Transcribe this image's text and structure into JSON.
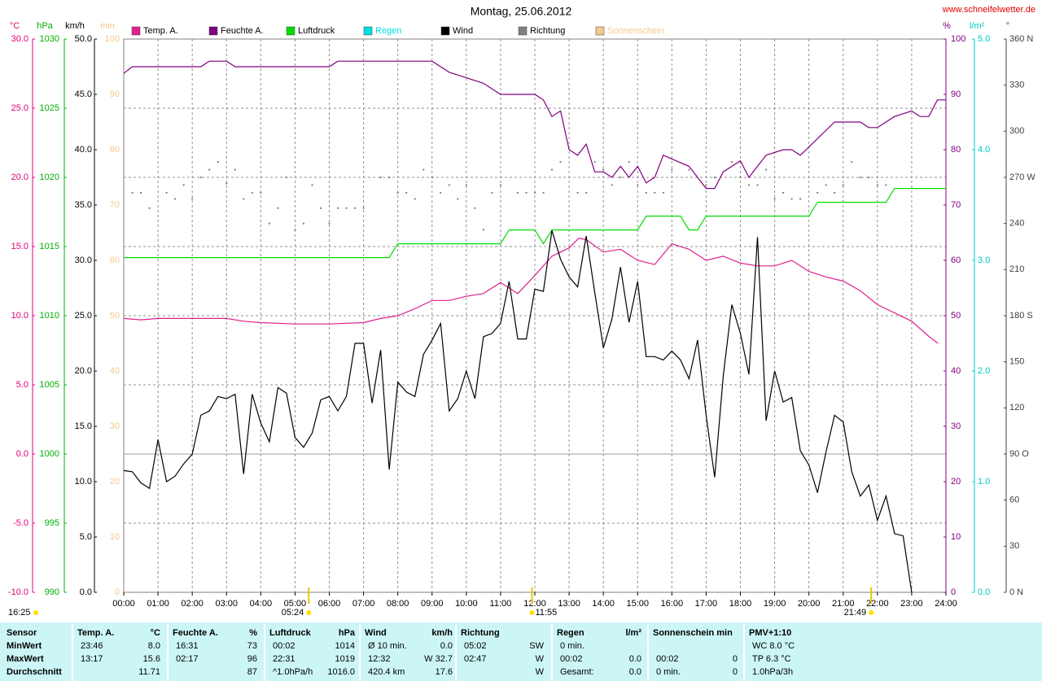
{
  "chart_data": {
    "type": "line",
    "title": "Montag, 25.06.2012",
    "source": "www.schneifelwetter.de",
    "time_stamp": "16:25",
    "sun_events": [
      "05:24",
      "11:55",
      "21:49"
    ],
    "xlim": [
      0,
      24
    ],
    "xticks": [
      {
        "value": 0,
        "label": "00:00"
      },
      {
        "value": 1,
        "label": "01:00"
      },
      {
        "value": 2,
        "label": "02:00"
      },
      {
        "value": 3,
        "label": "03:00"
      },
      {
        "value": 4,
        "label": "04:00"
      },
      {
        "value": 5,
        "label": "05:00"
      },
      {
        "value": 6,
        "label": "06:00"
      },
      {
        "value": 7,
        "label": "07:00"
      },
      {
        "value": 8,
        "label": "08:00"
      },
      {
        "value": 9,
        "label": "09:00"
      },
      {
        "value": 10,
        "label": "10:00"
      },
      {
        "value": 11,
        "label": "11:00"
      },
      {
        "value": 12,
        "label": "12:00"
      },
      {
        "value": 13,
        "label": "13:00"
      },
      {
        "value": 14,
        "label": "14:00"
      },
      {
        "value": 15,
        "label": "15:00"
      },
      {
        "value": 16,
        "label": "16:00"
      },
      {
        "value": 17,
        "label": "17:00"
      },
      {
        "value": 18,
        "label": "18:00"
      },
      {
        "value": 19,
        "label": "19:00"
      },
      {
        "value": 20,
        "label": "20:00"
      },
      {
        "value": 21,
        "label": "21:00"
      },
      {
        "value": 22,
        "label": "22:00"
      },
      {
        "value": 23,
        "label": "23:00"
      },
      {
        "value": 24,
        "label": "24:00"
      }
    ],
    "grid": true,
    "grid_axis": "temp",
    "axes": {
      "temp": {
        "label": "°C",
        "color": "#e0007a",
        "lim": [
          -10,
          30
        ],
        "ticks": [
          {
            "value": -10,
            "label": "-10.0"
          },
          {
            "value": -5,
            "label": "-5.0"
          },
          {
            "value": 0,
            "label": "0.0"
          },
          {
            "value": 5,
            "label": "5.0"
          },
          {
            "value": 10,
            "label": "10.0"
          },
          {
            "value": 15,
            "label": "15.0"
          },
          {
            "value": 20,
            "label": "20.0"
          },
          {
            "value": 25,
            "label": "25.0"
          },
          {
            "value": 30,
            "label": "30.0"
          }
        ]
      },
      "pressure": {
        "label": "hPa",
        "color": "#00b000",
        "lim": [
          990,
          1030
        ],
        "ticks": [
          990,
          995,
          1000,
          1005,
          1010,
          1015,
          1020,
          1025,
          1030
        ]
      },
      "wind": {
        "label": "km/h",
        "color": "#000000",
        "lim": [
          0,
          50
        ],
        "ticks": [
          {
            "value": 0,
            "label": "0.0"
          },
          {
            "value": 5,
            "label": "5.0"
          },
          {
            "value": 10,
            "label": "10.0"
          },
          {
            "value": 15,
            "label": "15.0"
          },
          {
            "value": 20,
            "label": "20.0"
          },
          {
            "value": 25,
            "label": "25.0"
          },
          {
            "value": 30,
            "label": "30.0"
          },
          {
            "value": 35,
            "label": "35.0"
          },
          {
            "value": 40,
            "label": "40.0"
          },
          {
            "value": 45,
            "label": "45.0"
          },
          {
            "value": 50,
            "label": "50.0"
          }
        ]
      },
      "sun": {
        "label": "min",
        "color": "#f5c98a",
        "lim": [
          0,
          100
        ],
        "ticks": [
          0,
          10,
          20,
          30,
          40,
          50,
          60,
          70,
          80,
          90,
          100
        ]
      },
      "humidity": {
        "label": "%",
        "color": "#800080",
        "lim": [
          0,
          100
        ],
        "ticks": [
          0,
          10,
          20,
          30,
          40,
          50,
          60,
          70,
          80,
          90,
          100
        ]
      },
      "rain": {
        "label": "l/m²",
        "color": "#00c8c8",
        "lim": [
          0,
          5
        ],
        "ticks": [
          {
            "value": 0,
            "label": "0.0"
          },
          {
            "value": 1,
            "label": "1.0"
          },
          {
            "value": 2,
            "label": "2.0"
          },
          {
            "value": 3,
            "label": "3.0"
          },
          {
            "value": 4,
            "label": "4.0"
          },
          {
            "value": 5,
            "label": "5.0"
          }
        ]
      },
      "direction": {
        "label": "°",
        "color": "#404040",
        "lim": [
          0,
          360
        ],
        "ticks": [
          {
            "value": 0,
            "label": "0 N"
          },
          30,
          60,
          {
            "value": 90,
            "label": "90 O"
          },
          120,
          150,
          {
            "value": 180,
            "label": "180 S"
          },
          210,
          240,
          {
            "value": 270,
            "label": "270 W"
          },
          300,
          330,
          {
            "value": 360,
            "label": "360 N"
          }
        ]
      }
    },
    "series": [
      {
        "name": "Temp. A.",
        "color": "#e0208e",
        "axis": "temp",
        "style": "line",
        "x": [
          0,
          0.5,
          1,
          2,
          3,
          3.5,
          4,
          5,
          6,
          7,
          7.5,
          8,
          8.5,
          9,
          9.5,
          10,
          10.5,
          11,
          11.5,
          12,
          12.5,
          13,
          13.28,
          13.5,
          14,
          14.5,
          15,
          15.5,
          16,
          16.5,
          17,
          17.5,
          18,
          18.5,
          19,
          19.5,
          20,
          20.5,
          21,
          21.5,
          22,
          22.5,
          23,
          23.5,
          23.77
        ],
        "values": [
          9.8,
          9.7,
          9.8,
          9.8,
          9.8,
          9.6,
          9.5,
          9.4,
          9.4,
          9.5,
          9.8,
          10.0,
          10.5,
          11.1,
          11.1,
          11.4,
          11.6,
          12.4,
          11.6,
          12.9,
          14.3,
          14.9,
          15.6,
          15.5,
          14.6,
          14.8,
          14.0,
          13.7,
          15.2,
          14.8,
          14.0,
          14.3,
          13.8,
          13.6,
          13.6,
          14.0,
          13.2,
          12.8,
          12.5,
          11.8,
          10.8,
          10.2,
          9.6,
          8.5,
          8.0
        ]
      },
      {
        "name": "Feuchte A.",
        "color": "#800080",
        "axis": "humidity",
        "style": "line",
        "x": [
          0,
          0.25,
          2.25,
          2.5,
          3,
          3.25,
          6,
          6.25,
          9,
          9.5,
          10,
          10.5,
          11,
          12,
          12.25,
          12.5,
          12.75,
          13,
          13.25,
          13.5,
          13.75,
          14,
          14.25,
          14.5,
          14.75,
          15,
          15.25,
          15.5,
          15.75,
          16.5,
          16.75,
          17,
          17.25,
          17.5,
          18,
          18.25,
          18.5,
          18.75,
          19.25,
          19.5,
          19.75,
          20.25,
          20.75,
          21.5,
          21.75,
          22,
          22.5,
          23,
          23.25,
          23.5,
          23.75,
          24
        ],
        "values": [
          93.8,
          95,
          95,
          96,
          96,
          95,
          95,
          96,
          96,
          94,
          93,
          92,
          90,
          90,
          89,
          86,
          87,
          80,
          79,
          81,
          76,
          76,
          75,
          77,
          75,
          77,
          74,
          75,
          79,
          77,
          75,
          73,
          73,
          76,
          78,
          75,
          77,
          79,
          80,
          80,
          79,
          82,
          85,
          85,
          84,
          84,
          86,
          87,
          86,
          86,
          89,
          89
        ]
      },
      {
        "name": "Luftdruck",
        "color": "#00dd00",
        "axis": "pressure",
        "style": "line",
        "x": [
          0,
          7.75,
          8,
          11,
          11.25,
          12,
          12.25,
          12.5,
          15,
          15.25,
          16.25,
          16.5,
          16.75,
          17,
          20,
          20.25,
          22.25,
          22.5,
          24
        ],
        "values": [
          1014.2,
          1014.2,
          1015.2,
          1015.2,
          1016.2,
          1016.2,
          1015.2,
          1016.2,
          1016.2,
          1017.2,
          1017.2,
          1016.2,
          1016.2,
          1017.2,
          1017.2,
          1018.2,
          1018.2,
          1019.2,
          1019.2
        ]
      },
      {
        "name": "Regen",
        "color": "#00e0e0",
        "axis": "rain",
        "style": "line",
        "x": [],
        "values": []
      },
      {
        "name": "Wind",
        "color": "#000000",
        "axis": "wind",
        "style": "line",
        "x": [
          0,
          0.25,
          0.5,
          0.75,
          1,
          1.25,
          1.5,
          1.75,
          2,
          2.25,
          2.5,
          2.75,
          3,
          3.25,
          3.5,
          3.75,
          4,
          4.25,
          4.5,
          4.75,
          5,
          5.25,
          5.5,
          5.75,
          6,
          6.25,
          6.5,
          6.75,
          7,
          7.25,
          7.5,
          7.75,
          8,
          8.25,
          8.5,
          8.75,
          9,
          9.25,
          9.5,
          9.75,
          10,
          10.25,
          10.5,
          10.75,
          11,
          11.25,
          11.5,
          11.75,
          12,
          12.25,
          12.5,
          12.75,
          13,
          13.25,
          13.5,
          13.75,
          14,
          14.25,
          14.5,
          14.75,
          15,
          15.25,
          15.5,
          15.75,
          16,
          16.25,
          16.5,
          16.75,
          17,
          17.25,
          17.5,
          17.75,
          18,
          18.25,
          18.5,
          18.75,
          19,
          19.25,
          19.5,
          19.75,
          20,
          20.25,
          20.5,
          20.75,
          21,
          21.25,
          21.5,
          21.75,
          22,
          22.25,
          22.5,
          22.75,
          23
        ],
        "values": [
          11.0,
          10.9,
          9.9,
          9.4,
          13.8,
          10.0,
          10.5,
          11.6,
          12.5,
          16.0,
          16.4,
          17.7,
          17.5,
          17.9,
          10.7,
          17.9,
          15.3,
          13.6,
          18.5,
          18.0,
          14.0,
          13.1,
          14.4,
          17.4,
          17.7,
          16.4,
          17.7,
          22.5,
          22.5,
          17.1,
          21.9,
          11.1,
          19.0,
          18.1,
          17.7,
          21.5,
          22.8,
          24.3,
          16.4,
          17.5,
          20.0,
          17.5,
          23.1,
          23.4,
          24.3,
          28.1,
          22.9,
          22.9,
          27.4,
          27.2,
          32.7,
          30.1,
          28.5,
          27.6,
          32.2,
          27.1,
          22.1,
          24.7,
          29.4,
          24.4,
          28.1,
          21.3,
          21.3,
          21.0,
          21.8,
          21.0,
          19.3,
          22.8,
          16.0,
          10.4,
          19.6,
          26.0,
          23.4,
          19.7,
          32.1,
          15.5,
          20.0,
          17.2,
          17.6,
          12.8,
          11.5,
          9.0,
          12.7,
          16.0,
          15.4,
          10.9,
          8.7,
          9.7,
          6.5,
          8.7,
          5.3,
          5.1,
          0.0
        ]
      },
      {
        "name": "Richtung",
        "color": "#808080",
        "axis": "direction",
        "style": "dots",
        "x": [
          0.25,
          0.5,
          0.75,
          1.25,
          1.5,
          1.75,
          2,
          2.25,
          2.5,
          2.75,
          3,
          3.25,
          3.5,
          3.75,
          4,
          4.25,
          4.5,
          4.75,
          5,
          5.25,
          5.5,
          5.75,
          6,
          6.25,
          6.5,
          6.75,
          7,
          7.5,
          7.75,
          8,
          8.25,
          8.5,
          8.75,
          9,
          9.25,
          9.5,
          9.75,
          10,
          10.25,
          10.5,
          10.75,
          11,
          11.5,
          11.75,
          12,
          12.25,
          12.5,
          12.75,
          13.25,
          13.5,
          13.75,
          14,
          14.25,
          14.5,
          14.75,
          15,
          15.25,
          15.5,
          15.75,
          16,
          16.5,
          17,
          17.25,
          17.75,
          18,
          18.25,
          18.5,
          18.75,
          19,
          19.25,
          19.5,
          19.75,
          20.25,
          20.5,
          20.75,
          21,
          21.25,
          21.5,
          21.75,
          22,
          22.25
        ],
        "values": [
          260,
          260,
          250,
          260,
          256,
          265,
          256,
          270,
          275,
          280,
          266,
          275,
          256,
          260,
          260,
          240,
          250,
          270,
          236,
          240,
          265,
          250,
          240,
          250,
          250,
          250,
          250,
          270,
          270,
          260,
          260,
          256,
          275,
          270,
          260,
          265,
          256,
          265,
          250,
          236,
          260,
          265,
          260,
          260,
          260,
          260,
          275,
          280,
          260,
          260,
          280,
          275,
          265,
          270,
          280,
          265,
          260,
          260,
          260,
          275,
          275,
          265,
          270,
          280,
          270,
          265,
          265,
          275,
          256,
          260,
          256,
          256,
          260,
          265,
          260,
          265,
          280,
          270,
          270,
          265,
          265
        ]
      },
      {
        "name": "Sonnenschein",
        "color": "#f5c98a",
        "axis": "sun",
        "style": "line",
        "x": [],
        "values": []
      }
    ]
  },
  "summary_table": {
    "columns": [
      {
        "header": "Sensor",
        "rows": [
          [
            "MinWert"
          ],
          [
            "MaxWert"
          ],
          [
            "Durchschnitt"
          ]
        ]
      },
      {
        "header": "Temp. A.",
        "unit": "°C",
        "rows": [
          [
            "23:46",
            "8.0"
          ],
          [
            "13:17",
            "15.6"
          ],
          [
            null,
            "11.71"
          ]
        ]
      },
      {
        "header": "Feuchte A.",
        "unit": "%",
        "rows": [
          [
            "16:31",
            "73"
          ],
          [
            "02:17",
            "96"
          ],
          [
            null,
            "87"
          ]
        ]
      },
      {
        "header": "Luftdruck",
        "unit": "hPa",
        "rows": [
          [
            "00:02",
            "1014"
          ],
          [
            "22:31",
            "1019"
          ],
          [
            "^1.0hPa/h",
            "1016.0"
          ]
        ]
      },
      {
        "header": "Wind",
        "unit": "km/h",
        "rows": [
          [
            "Ø 10 min.",
            "0.0"
          ],
          [
            "12:32",
            "W 32.7"
          ],
          [
            "420.4 km",
            "17.6"
          ]
        ]
      },
      {
        "header": "Richtung",
        "rows": [
          [
            "05:02",
            "SW"
          ],
          [
            "02:47",
            "W"
          ],
          [
            null,
            "W"
          ]
        ]
      },
      {
        "header": "Regen",
        "unit": "l/m²",
        "rows": [
          [
            "0 min.",
            null
          ],
          [
            "00:02",
            "0.0"
          ],
          [
            "Gesamt:",
            "0.0"
          ]
        ]
      },
      {
        "header": "Sonnenschein min",
        "rows": [
          [
            null,
            null
          ],
          [
            "00:02",
            "0"
          ],
          [
            "0 min.",
            "0"
          ]
        ]
      },
      {
        "header": "PMV+1:10",
        "rows": [
          [
            "WC 8.0 °C"
          ],
          [
            "TP 6.3 °C"
          ],
          [
            "1.0hPa/3h"
          ]
        ]
      }
    ]
  }
}
